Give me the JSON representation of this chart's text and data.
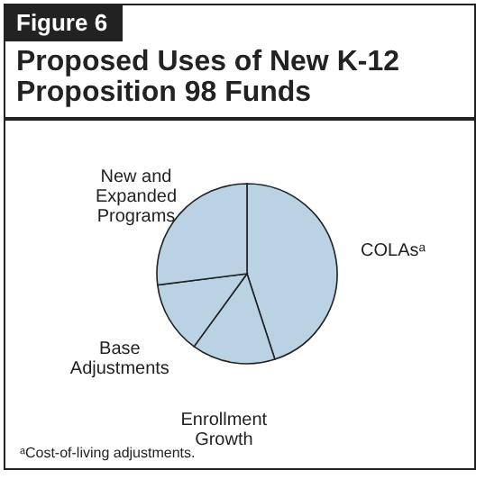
{
  "chart_data": {
    "type": "pie",
    "subtitle": "Figure 6",
    "title": "Proposed Uses of New K-12 Proposition 98 Funds",
    "categories": [
      "COLAsᵃ",
      "Enrollment Growth",
      "Base Adjustments",
      "New and Expanded Programs"
    ],
    "values": [
      45,
      15,
      13,
      27
    ],
    "colors": [
      "#b9d2e4",
      "#b9d2e4",
      "#b9d2e4",
      "#b9d2e4"
    ],
    "annotations": [
      "ᵃCost-of-living adjustments."
    ]
  }
}
